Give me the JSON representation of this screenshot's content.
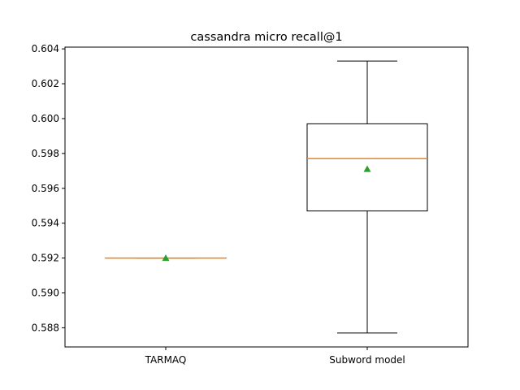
{
  "chart_data": {
    "type": "box",
    "title": "cassandra micro recall@1",
    "xlabel": "",
    "ylabel": "",
    "categories": [
      "TARMAQ",
      "Subword model"
    ],
    "boxes": [
      {
        "label": "TARMAQ",
        "whisker_low": 0.592,
        "q1": 0.592,
        "median": 0.592,
        "q3": 0.592,
        "whisker_high": 0.592,
        "mean": 0.592
      },
      {
        "label": "Subword model",
        "whisker_low": 0.5877,
        "q1": 0.5947,
        "median": 0.5977,
        "q3": 0.5997,
        "whisker_high": 0.6033,
        "mean": 0.5971
      }
    ],
    "ylim": [
      0.5869,
      0.6041
    ],
    "yticks": [
      "0.588",
      "0.590",
      "0.592",
      "0.594",
      "0.596",
      "0.598",
      "0.600",
      "0.602",
      "0.604"
    ],
    "grid": false,
    "colors": {
      "box": "#000000",
      "median": "#ff7f0e",
      "mean": "#2ca02c"
    }
  }
}
